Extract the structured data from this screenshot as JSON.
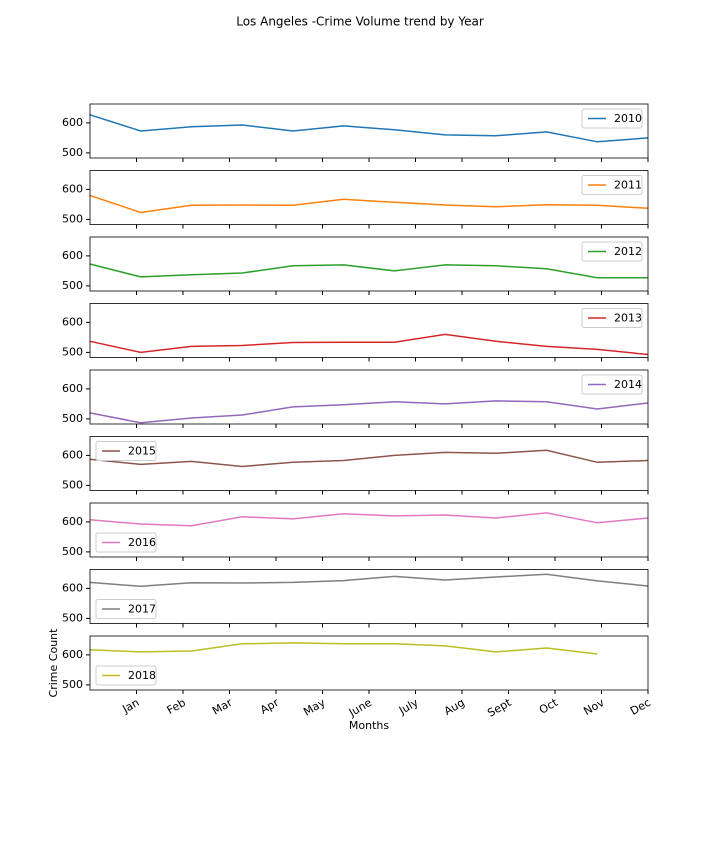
{
  "title": "Los Angeles -Crime Volume trend by Year",
  "chart_data": [
    {
      "type": "line",
      "legend": "upper right",
      "x": [
        0,
        1,
        2,
        3,
        4,
        5,
        6,
        7,
        8,
        9,
        10,
        11
      ],
      "xlim": [
        0,
        11
      ],
      "ylim": [
        483,
        663
      ],
      "yticks": [
        500,
        600
      ],
      "series": [
        {
          "name": "2010",
          "color": "#1f77b4",
          "values": [
            627,
            573,
            587,
            593,
            573,
            590,
            577,
            560,
            557,
            570,
            537,
            550
          ]
        }
      ]
    },
    {
      "type": "line",
      "legend": "upper right",
      "x": [
        0,
        1,
        2,
        3,
        4,
        5,
        6,
        7,
        8,
        9,
        10,
        11
      ],
      "xlim": [
        0,
        11
      ],
      "ylim": [
        483,
        663
      ],
      "yticks": [
        500,
        600
      ],
      "series": [
        {
          "name": "2011",
          "color": "#ff7f0e",
          "values": [
            580,
            523,
            547,
            548,
            547,
            567,
            557,
            548,
            542,
            549,
            547,
            537
          ]
        }
      ]
    },
    {
      "type": "line",
      "legend": "upper right",
      "x": [
        0,
        1,
        2,
        3,
        4,
        5,
        6,
        7,
        8,
        9,
        10,
        11
      ],
      "xlim": [
        0,
        11
      ],
      "ylim": [
        483,
        663
      ],
      "yticks": [
        500,
        600
      ],
      "series": [
        {
          "name": "2012",
          "color": "#2ca02c",
          "values": [
            573,
            530,
            537,
            543,
            567,
            570,
            550,
            570,
            567,
            557,
            527,
            527
          ]
        }
      ]
    },
    {
      "type": "line",
      "legend": "upper right",
      "x": [
        0,
        1,
        2,
        3,
        4,
        5,
        6,
        7,
        8,
        9,
        10,
        11
      ],
      "xlim": [
        0,
        11
      ],
      "ylim": [
        483,
        663
      ],
      "yticks": [
        500,
        600
      ],
      "series": [
        {
          "name": "2013",
          "color": "#d62728",
          "values": [
            537,
            500,
            520,
            523,
            533,
            534,
            534,
            560,
            537,
            520,
            510,
            493
          ]
        }
      ]
    },
    {
      "type": "line",
      "legend": "upper right",
      "x": [
        0,
        1,
        2,
        3,
        4,
        5,
        6,
        7,
        8,
        9,
        10,
        11
      ],
      "xlim": [
        0,
        11
      ],
      "ylim": [
        483,
        663
      ],
      "yticks": [
        500,
        600
      ],
      "series": [
        {
          "name": "2014",
          "color": "#9467bd",
          "values": [
            520,
            487,
            503,
            513,
            540,
            547,
            557,
            550,
            560,
            557,
            533,
            553
          ]
        }
      ]
    },
    {
      "type": "line",
      "legend": "upper left",
      "x": [
        0,
        1,
        2,
        3,
        4,
        5,
        6,
        7,
        8,
        9,
        10,
        11
      ],
      "xlim": [
        0,
        11
      ],
      "ylim": [
        483,
        663
      ],
      "yticks": [
        500,
        600
      ],
      "series": [
        {
          "name": "2015",
          "color": "#8c564b",
          "values": [
            587,
            570,
            580,
            563,
            577,
            583,
            600,
            610,
            607,
            617,
            577,
            583
          ]
        }
      ]
    },
    {
      "type": "line",
      "legend": "lower left",
      "x": [
        0,
        1,
        2,
        3,
        4,
        5,
        6,
        7,
        8,
        9,
        10,
        11
      ],
      "xlim": [
        0,
        11
      ],
      "ylim": [
        483,
        663
      ],
      "yticks": [
        500,
        600
      ],
      "series": [
        {
          "name": "2016",
          "color": "#e377c2",
          "values": [
            607,
            593,
            587,
            617,
            610,
            627,
            620,
            623,
            613,
            630,
            597,
            613
          ]
        }
      ]
    },
    {
      "type": "line",
      "legend": "lower left",
      "x": [
        0,
        1,
        2,
        3,
        4,
        5,
        6,
        7,
        8,
        9,
        10,
        11
      ],
      "xlim": [
        0,
        11
      ],
      "ylim": [
        483,
        663
      ],
      "yticks": [
        500,
        600
      ],
      "series": [
        {
          "name": "2017",
          "color": "#7f7f7f",
          "values": [
            620,
            607,
            619,
            618,
            620,
            626,
            640,
            628,
            638,
            647,
            625,
            608
          ]
        }
      ]
    },
    {
      "type": "line",
      "legend": "lower left",
      "x": [
        0,
        1,
        2,
        3,
        4,
        5,
        6,
        7,
        8,
        9,
        10,
        11
      ],
      "xlim": [
        0,
        11
      ],
      "ylim": [
        483,
        663
      ],
      "yticks": [
        500,
        600
      ],
      "xlabel": "Months",
      "ylabel": "Crime Count",
      "xticks": [
        {
          "value": 0.917,
          "label": "Jan"
        },
        {
          "value": 1.833,
          "label": "Feb"
        },
        {
          "value": 2.75,
          "label": "Mar"
        },
        {
          "value": 3.667,
          "label": "Apr"
        },
        {
          "value": 4.583,
          "label": "May"
        },
        {
          "value": 5.5,
          "label": "June"
        },
        {
          "value": 6.417,
          "label": "July"
        },
        {
          "value": 7.333,
          "label": "Aug"
        },
        {
          "value": 8.25,
          "label": "Sept"
        },
        {
          "value": 9.167,
          "label": "Oct"
        },
        {
          "value": 10.083,
          "label": "Nov"
        },
        {
          "value": 11,
          "label": "Dec"
        }
      ],
      "series": [
        {
          "name": "2018",
          "color": "#bcbd22",
          "values": [
            617,
            610,
            613,
            637,
            640,
            637,
            637,
            630,
            610,
            623,
            603,
            null
          ]
        }
      ]
    }
  ]
}
